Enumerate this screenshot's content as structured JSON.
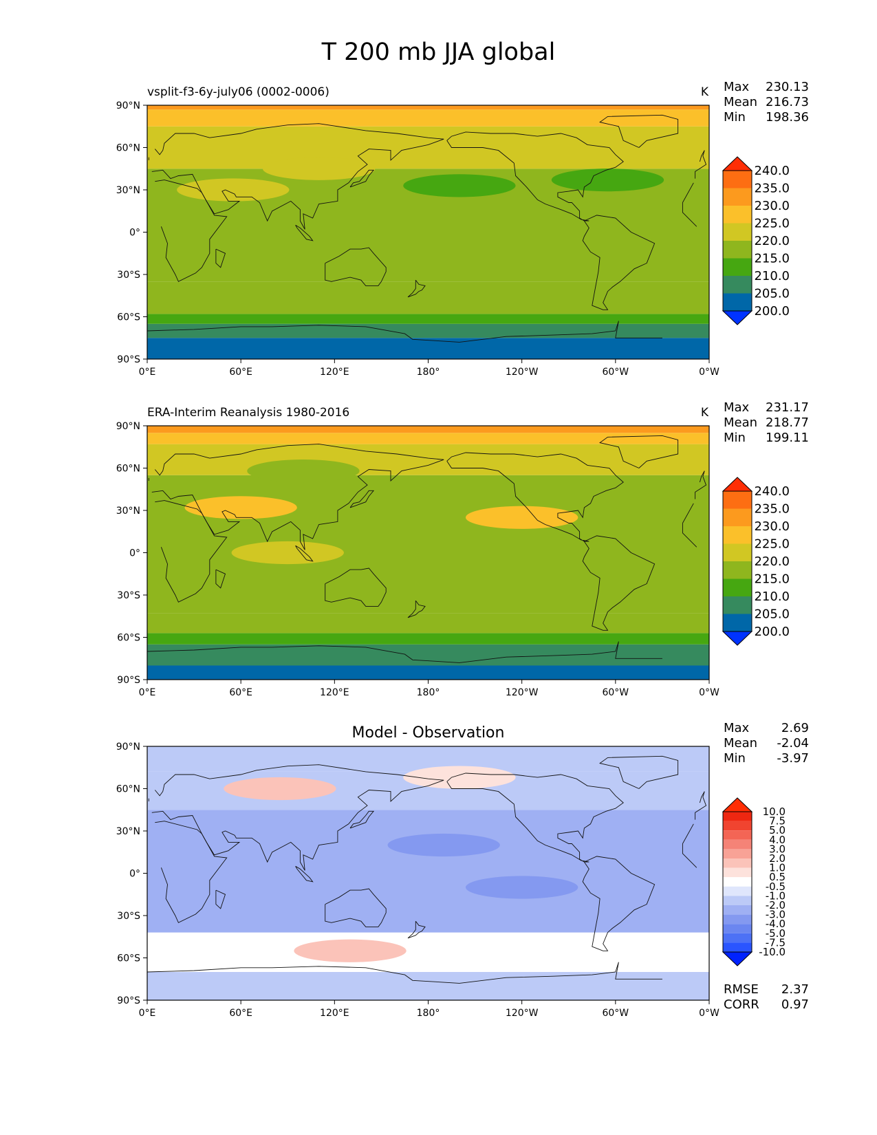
{
  "figure": {
    "title": "T 200 mb JJA global"
  },
  "axis_ticks": {
    "lat": [
      "90°N",
      "60°N",
      "30°N",
      "0°",
      "30°S",
      "60°S",
      "90°S"
    ],
    "lon": [
      "0°E",
      "60°E",
      "120°E",
      "180°",
      "120°W",
      "60°W",
      "0°W"
    ]
  },
  "chart_data": [
    {
      "type": "heatmap",
      "title": "vsplit-f3-6y-july06 (0002-0006)",
      "units": "K",
      "stats": {
        "max_label": "Max",
        "max": "230.13",
        "mean_label": "Mean",
        "mean": "216.73",
        "min_label": "Min",
        "min": "198.36"
      },
      "colorbar": {
        "levels": [
          "200.0",
          "205.0",
          "210.0",
          "215.0",
          "220.0",
          "225.0",
          "230.0",
          "235.0",
          "240.0"
        ],
        "colors": [
          "#0033ff",
          "#0067a8",
          "#368a5e",
          "#46a711",
          "#8fb61e",
          "#d1c723",
          "#fbc02a",
          "#fc9a1e",
          "#fd6e12",
          "#ff2e05"
        ],
        "extend": "both"
      },
      "x": {
        "label": "",
        "range": [
          0,
          360
        ],
        "unit": "degrees longitude"
      },
      "y": {
        "label": "",
        "range": [
          -90,
          90
        ],
        "unit": "degrees latitude"
      },
      "field": [
        {
          "lat_range": [
            -90,
            -75
          ],
          "value": 200
        },
        {
          "lat_range": [
            -75,
            -65
          ],
          "value": 205
        },
        {
          "lat_range": [
            -65,
            -58
          ],
          "value": 210
        },
        {
          "lat_range": [
            -58,
            -35
          ],
          "value": 215
        },
        {
          "lat_range": [
            -35,
            45
          ],
          "value": 218
        },
        {
          "lat_range": [
            45,
            75
          ],
          "value": 222
        },
        {
          "lat_range": [
            75,
            87
          ],
          "value": 227
        },
        {
          "lat_range": [
            87,
            90
          ],
          "value": 231
        }
      ],
      "features": [
        {
          "lon": 200,
          "lat": 33,
          "value": 212
        },
        {
          "lon": 295,
          "lat": 37,
          "value": 212
        },
        {
          "lon": 55,
          "lat": 30,
          "value": 222
        },
        {
          "lon": 110,
          "lat": 45,
          "value": 222
        }
      ]
    },
    {
      "type": "heatmap",
      "title": "ERA-Interim Reanalysis 1980-2016",
      "units": "K",
      "stats": {
        "max_label": "Max",
        "max": "231.17",
        "mean_label": "Mean",
        "mean": "218.77",
        "min_label": "Min",
        "min": "199.11"
      },
      "colorbar": {
        "levels": [
          "200.0",
          "205.0",
          "210.0",
          "215.0",
          "220.0",
          "225.0",
          "230.0",
          "235.0",
          "240.0"
        ],
        "colors": [
          "#0033ff",
          "#0067a8",
          "#368a5e",
          "#46a711",
          "#8fb61e",
          "#d1c723",
          "#fbc02a",
          "#fc9a1e",
          "#fd6e12",
          "#ff2e05"
        ],
        "extend": "both"
      },
      "x": {
        "label": "",
        "range": [
          0,
          360
        ],
        "unit": "degrees longitude"
      },
      "y": {
        "label": "",
        "range": [
          -90,
          90
        ],
        "unit": "degrees latitude"
      },
      "field": [
        {
          "lat_range": [
            -90,
            -80
          ],
          "value": 200
        },
        {
          "lat_range": [
            -80,
            -65
          ],
          "value": 205
        },
        {
          "lat_range": [
            -65,
            -57
          ],
          "value": 210
        },
        {
          "lat_range": [
            -57,
            -43
          ],
          "value": 215
        },
        {
          "lat_range": [
            -43,
            55
          ],
          "value": 218
        },
        {
          "lat_range": [
            55,
            77
          ],
          "value": 222
        },
        {
          "lat_range": [
            77,
            85
          ],
          "value": 227
        },
        {
          "lat_range": [
            85,
            90
          ],
          "value": 232
        }
      ],
      "features": [
        {
          "lon": 90,
          "lat": 0,
          "value": 222
        },
        {
          "lon": 60,
          "lat": 32,
          "value": 227
        },
        {
          "lon": 240,
          "lat": 25,
          "value": 227
        },
        {
          "lon": 100,
          "lat": 58,
          "value": 218
        }
      ]
    },
    {
      "type": "heatmap",
      "title": "Model - Observation",
      "units": "",
      "stats": {
        "max_label": "Max",
        "max": "2.69",
        "mean_label": "Mean",
        "mean": "-2.04",
        "min_label": "Min",
        "min": "-3.97"
      },
      "metrics": {
        "rmse_label": "RMSE",
        "rmse": "2.37",
        "corr_label": "CORR",
        "corr": "0.97"
      },
      "colorbar": {
        "levels": [
          "-10.0",
          "-7.5",
          "-5.0",
          "-4.0",
          "-3.0",
          "-2.0",
          "-1.0",
          "-0.5",
          "0.5",
          "1.0",
          "2.0",
          "3.0",
          "4.0",
          "5.0",
          "7.5",
          "10.0"
        ],
        "colors": [
          "#0022ff",
          "#2a55ff",
          "#4d71f5",
          "#6b86f0",
          "#8499f0",
          "#9fb0f3",
          "#bccaf7",
          "#dfe6fc",
          "#ffffff",
          "#fde2dc",
          "#fbc3b9",
          "#f8a296",
          "#f58377",
          "#f36555",
          "#f04430",
          "#ee2711",
          "#ff2e05"
        ],
        "extend": "both"
      },
      "x": {
        "label": "",
        "range": [
          0,
          360
        ],
        "unit": "degrees longitude"
      },
      "y": {
        "label": "",
        "range": [
          -90,
          90
        ],
        "unit": "degrees latitude"
      },
      "field": [
        {
          "lat_range": [
            -90,
            -70
          ],
          "value": -1.5
        },
        {
          "lat_range": [
            -70,
            -62
          ],
          "value": 0
        },
        {
          "lat_range": [
            -62,
            -42
          ],
          "value": 0.2
        },
        {
          "lat_range": [
            -42,
            45
          ],
          "value": -2.5
        },
        {
          "lat_range": [
            45,
            72
          ],
          "value": -2.0
        },
        {
          "lat_range": [
            72,
            90
          ],
          "value": -1.2
        }
      ],
      "features": [
        {
          "lon": 130,
          "lat": -55,
          "value": 1.5
        },
        {
          "lon": 85,
          "lat": 60,
          "value": 1.2
        },
        {
          "lon": 200,
          "lat": 68,
          "value": 0.8
        },
        {
          "lon": 190,
          "lat": 20,
          "value": -3.5
        },
        {
          "lon": 240,
          "lat": -10,
          "value": -3.5
        }
      ]
    }
  ]
}
